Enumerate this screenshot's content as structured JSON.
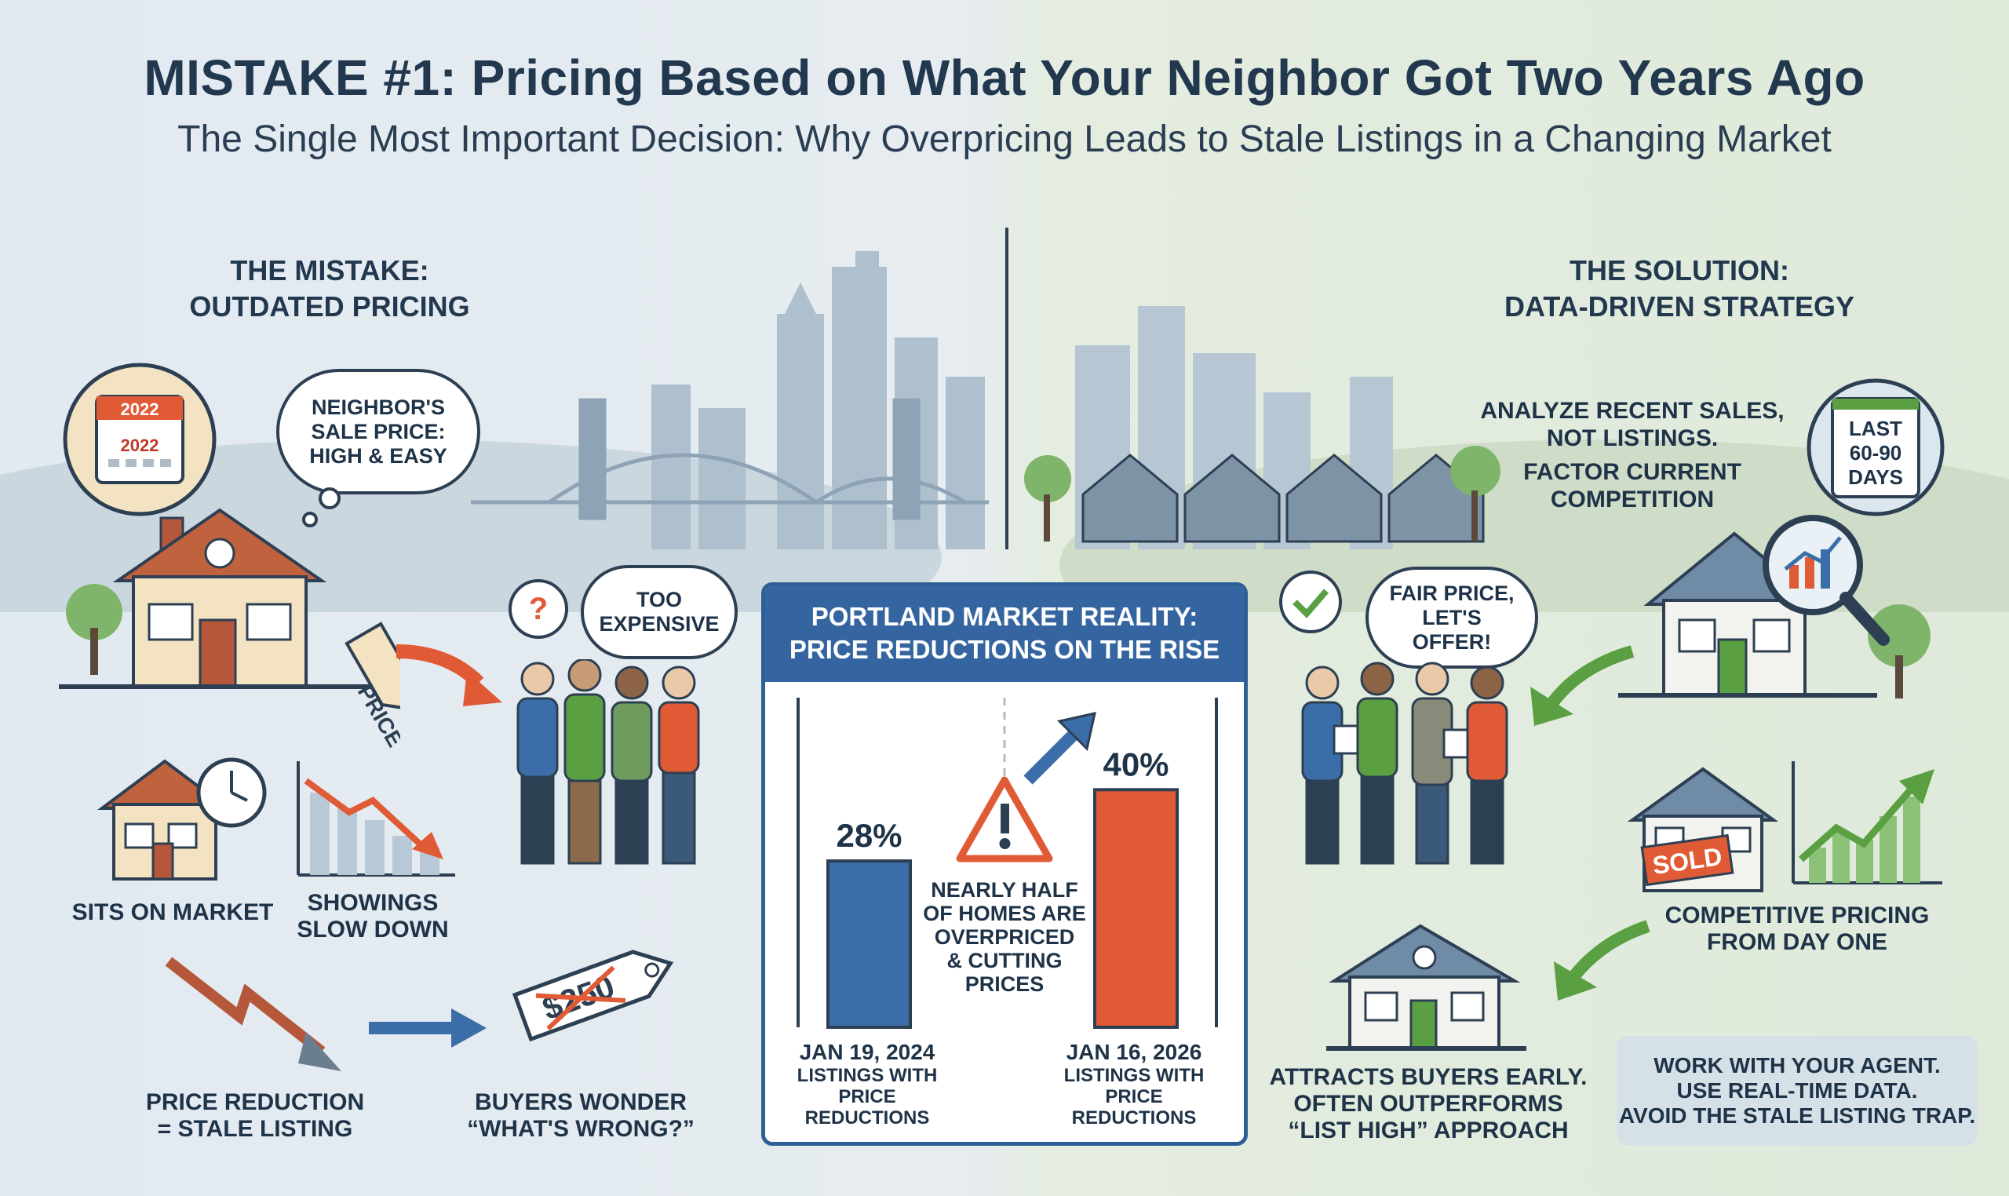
{
  "header": {
    "title": "MISTAKE #1: Pricing Based on What Your Neighbor Got Two Years Ago",
    "subtitle": "The Single Most Important Decision: Why Overpricing Leads to Stale Listings in a Changing Market"
  },
  "mistake": {
    "heading_line1": "THE MISTAKE:",
    "heading_line2": "OUTDATED PRICING",
    "calendar_year_top": "2022",
    "calendar_year_mid": "2022",
    "thought_bubble": "NEIGHBOR'S SALE PRICE: HIGH & EASY",
    "price_tag": "PRICE",
    "buyers_bubble": "TOO EXPENSIVE",
    "buyers_question": "?",
    "sits_on_market": "SITS ON MARKET",
    "showings_line1": "SHOWINGS",
    "showings_line2": "SLOW DOWN",
    "reduction_line1": "PRICE REDUCTION",
    "reduction_line2": "= STALE LISTING",
    "wonder_line1": "BUYERS WONDER",
    "wonder_line2": "“WHAT'S WRONG?”",
    "crossed_price": "$250"
  },
  "market_panel": {
    "heading_line1": "PORTLAND MARKET REALITY:",
    "heading_line2": "PRICE REDUCTIONS ON THE RISE",
    "warning_line1": "NEARLY HALF",
    "warning_line2": "OF HOMES ARE",
    "warning_line3": "OVERPRICED",
    "warning_line4": "& CUTTING",
    "warning_line5": "PRICES",
    "chart_data": {
      "type": "bar",
      "categories": [
        "JAN 19, 2024",
        "JAN 16, 2026"
      ],
      "values": [
        28,
        40
      ],
      "value_labels": [
        "28%",
        "40%"
      ],
      "category_sublabel_line1": "LISTINGS WITH",
      "category_sublabel_line2": "PRICE",
      "category_sublabel_line3": "REDUCTIONS",
      "colors": [
        "#3b6ea8",
        "#e05a35"
      ],
      "ylim": [
        0,
        50
      ]
    }
  },
  "solution": {
    "heading_line1": "THE SOLUTION:",
    "heading_line2": "DATA-DRIVEN STRATEGY",
    "analyze_line1": "ANALYZE RECENT SALES,",
    "analyze_line2": "NOT LISTINGS.",
    "factor_line1": "FACTOR CURRENT",
    "factor_line2": "COMPETITION",
    "calendar_line1": "LAST",
    "calendar_line2": "60-90",
    "calendar_line3": "DAYS",
    "fair_price_bubble": "FAIR PRICE, LET'S OFFER!",
    "sold_sign": "SOLD",
    "competitive_line1": "COMPETITIVE PRICING",
    "competitive_line2": "FROM DAY ONE",
    "attracts_line1": "ATTRACTS BUYERS EARLY.",
    "attracts_line2": "OFTEN OUTPERFORMS",
    "attracts_line3": "“LIST HIGH” APPROACH",
    "agent_line1": "WORK WITH YOUR AGENT.",
    "agent_line2": "USE REAL-TIME DATA.",
    "agent_line3": "AVOID THE STALE LISTING TRAP."
  },
  "colors": {
    "navy": "#22384f",
    "blue_bar": "#3b6ea8",
    "orange_bar": "#e05a35",
    "red_arrow": "#e05a35",
    "green_arrow": "#5aa043",
    "panel_blue": "#3565a0"
  }
}
